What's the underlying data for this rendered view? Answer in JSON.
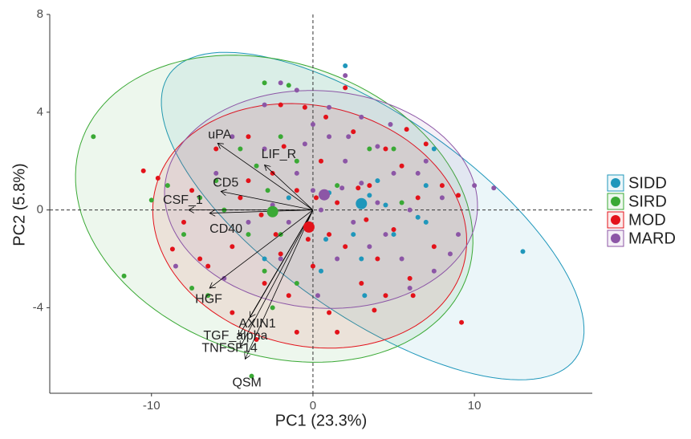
{
  "chart_data": {
    "type": "pca-biplot",
    "x_label": "PC1 (23.3%)",
    "y_label": "PC2 (5.8%)",
    "xlim": [
      -16.3,
      17.3
    ],
    "ylim": [
      -7.5,
      8
    ],
    "xticks": [
      -10,
      0,
      10
    ],
    "yticks": [
      -4,
      0,
      4,
      8
    ],
    "hline": 0,
    "vline": 0,
    "legend": "right",
    "series": [
      {
        "name": "SIDD",
        "color": "#1f97bb",
        "x": [
          2,
          7,
          13,
          3.2,
          7,
          1,
          3.5,
          5,
          0.5,
          6.5,
          4,
          2.5,
          -1.5,
          7.5,
          3,
          -3,
          0.8,
          4.5
        ],
        "values": [
          5.9,
          1,
          -1.7,
          -3.5,
          -0.5,
          0.7,
          0.6,
          -1,
          -2.5,
          -0.3,
          1.2,
          -1,
          0.5,
          2.5,
          -2,
          -2,
          -1.2,
          0.2
        ],
        "centroid": [
          3,
          0.26
        ],
        "ellipse": {
          "cx": 3.7,
          "cy": -0.25,
          "rx": 14,
          "ry": 4.5,
          "angle": -22
        }
      },
      {
        "name": "SIRD",
        "color": "#3aa935",
        "x": [
          -13.6,
          -11.7,
          -10,
          -3,
          -3.8,
          -7.5,
          -3.5,
          -2,
          -1,
          -5.5,
          -4,
          -2,
          -6.5,
          -8,
          -6,
          -3,
          3.5,
          5,
          -1.5,
          -9,
          -4.5,
          -2.5,
          1.5,
          -7,
          -1,
          -2.8,
          5.5
        ],
        "values": [
          3,
          -2.7,
          0.4,
          5.2,
          -6.8,
          -3.2,
          1.8,
          3,
          2,
          0,
          -1,
          -1,
          -3.5,
          -1,
          1.2,
          -2.5,
          2.5,
          2.5,
          5.1,
          1,
          2.5,
          -4,
          1,
          0.5,
          -3,
          0.8,
          0.3
        ],
        "centroid": [
          -2.5,
          -0.07
        ],
        "ellipse": {
          "cx": -2.4,
          "cy": 0.05,
          "rx": 12.4,
          "ry": 6.1,
          "angle": -8
        }
      },
      {
        "name": "MOD",
        "color": "#e3121a",
        "x": [
          -10.5,
          -9.6,
          -8,
          -7,
          -6,
          -5,
          -4.5,
          -4,
          -3,
          -2.5,
          -2,
          -1.5,
          -1,
          -0.5,
          0,
          0.5,
          1,
          1.5,
          2,
          2.5,
          3,
          3.5,
          4,
          4.5,
          5,
          5.5,
          6,
          6.5,
          7,
          7.5,
          8,
          9,
          9.2,
          -3.5,
          -1,
          1.5,
          3.8,
          -6.5,
          -7.5,
          -2,
          0.8,
          2,
          -5,
          -2.3,
          1,
          4.5,
          -0.3,
          2.8,
          -4,
          6.2,
          -8.7,
          -3.2,
          0.2,
          3.3,
          -1.8,
          5.8
        ],
        "values": [
          1.6,
          1.3,
          -0.5,
          -2,
          2.5,
          -1.5,
          0.5,
          3,
          -3,
          1.5,
          -1.8,
          -3.5,
          0.8,
          4.2,
          -2.3,
          2,
          -4.2,
          0.3,
          -1.5,
          3.2,
          -3,
          1,
          -2,
          2.5,
          -0.8,
          1.8,
          -2.8,
          0.5,
          2.7,
          -1.5,
          1,
          0.6,
          -4.6,
          -5.3,
          -5,
          -5,
          -4.1,
          -2.3,
          0.8,
          4.3,
          3.8,
          5,
          -4.2,
          -1,
          -1,
          -3.5,
          -1.2,
          0.9,
          1.2,
          -3.5,
          -1.6,
          -0.2,
          0.5,
          -0.4,
          2.6,
          3.3
        ],
        "centroid": [
          -0.25,
          -0.7
        ],
        "ellipse": {
          "cx": -0.2,
          "cy": -0.65,
          "rx": 9.75,
          "ry": 4.95,
          "angle": -5
        }
      },
      {
        "name": "MARD",
        "color": "#8c56a6",
        "x": [
          -6,
          -5,
          -3,
          -2,
          -1,
          0,
          1,
          2,
          3,
          4,
          5,
          6,
          7,
          8,
          9,
          10,
          11.2,
          -4,
          -2,
          -1,
          0.5,
          1.5,
          2.5,
          3.5,
          4.5,
          5.5,
          6.5,
          7.5,
          -3,
          -1.5,
          1,
          2.2,
          3,
          4,
          -0.5,
          0.3,
          1.8,
          -5.5,
          -8.5,
          8.5,
          2,
          0,
          -2.5,
          4.8,
          6
        ],
        "values": [
          1.5,
          3,
          4.3,
          5.2,
          4.9,
          3.5,
          3,
          2,
          3.8,
          2.6,
          1.5,
          0,
          2,
          0.5,
          -1,
          1,
          0.9,
          -0.5,
          -2,
          1.5,
          0,
          -2,
          -0.5,
          -1.5,
          -1,
          -2,
          1.5,
          -2.5,
          2.5,
          -0.5,
          4.2,
          3,
          1.1,
          0.3,
          2.7,
          -3.5,
          0.9,
          -2.8,
          -2.3,
          -1.8,
          5.5,
          0.8,
          0.2,
          3.5,
          -3.2
        ],
        "centroid": [
          0.7,
          0.62
        ],
        "ellipse": {
          "cx": 0.5,
          "cy": 0.43,
          "rx": 9.7,
          "ry": 4.45,
          "angle": -2
        }
      }
    ],
    "loadings": [
      {
        "label": "uPA",
        "x": -5.9,
        "y": 2.73
      },
      {
        "label": "LIF_R",
        "x": -3,
        "y": 1.84
      },
      {
        "label": "CD5",
        "x": -5.7,
        "y": 0.76
      },
      {
        "label": "CSF_1",
        "x": -7.7,
        "y": 0
      },
      {
        "label": "CD40",
        "x": -6.4,
        "y": -0.13
      },
      {
        "label": "HGF",
        "x": -6.4,
        "y": -3.2
      },
      {
        "label": "AXIN1",
        "x": -3.9,
        "y": -4.4
      },
      {
        "label": "TGF_alpha",
        "x": -4.6,
        "y": -5.16
      },
      {
        "label": "TNFSF14",
        "x": -4.5,
        "y": -5.6
      },
      {
        "label": "QSM",
        "x": -4.2,
        "y": -6.1
      }
    ]
  }
}
